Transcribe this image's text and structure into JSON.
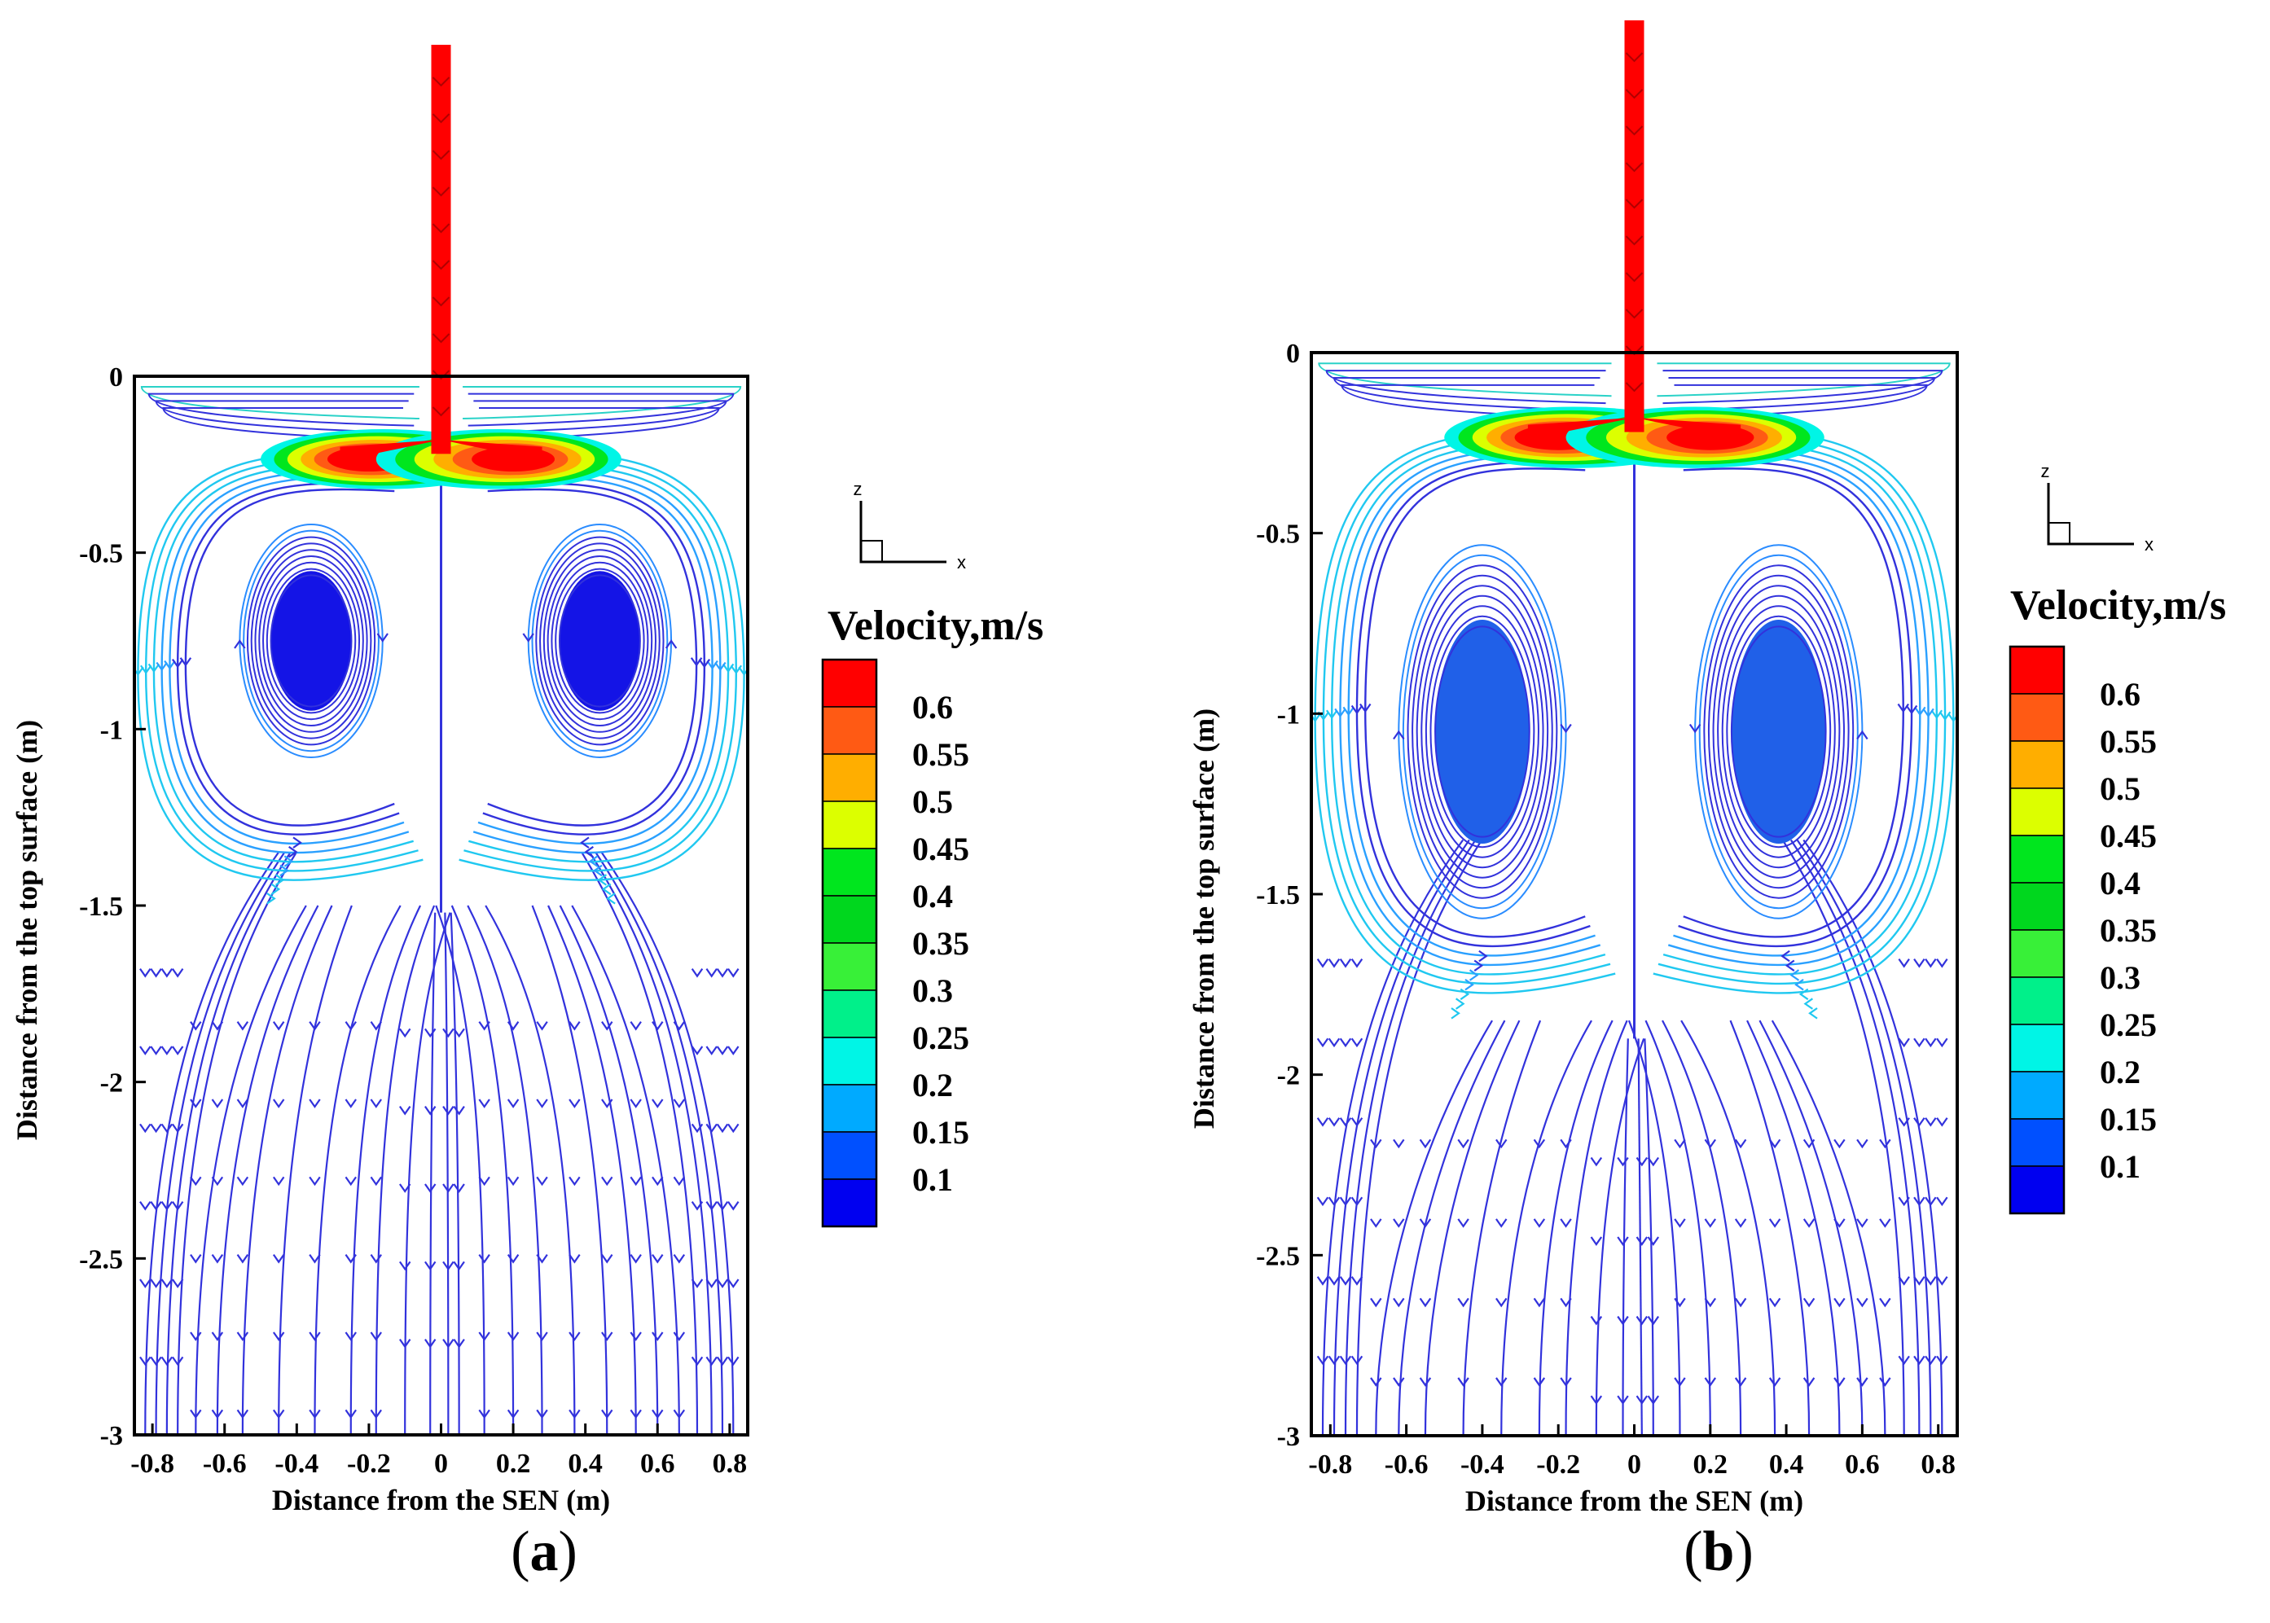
{
  "chart_data": [
    {
      "type": "streamline",
      "panel_label": "a",
      "xlabel": "Distance from the SEN (m)",
      "ylabel": "Distance from the top surface (m)",
      "xlim": [
        -0.85,
        0.85
      ],
      "ylim": [
        -3,
        0
      ],
      "xticks": [
        -0.8,
        -0.6,
        -0.4,
        -0.2,
        0,
        0.2,
        0.4,
        0.6,
        0.8
      ],
      "xtick_labels": [
        "-0.8",
        "-0.6",
        "-0.4",
        "-0.2",
        "0",
        "0.2",
        "0.4",
        "0.6",
        "0.8"
      ],
      "yticks": [
        0,
        -0.5,
        -1,
        -1.5,
        -2,
        -2.5,
        -3
      ],
      "ytick_labels": [
        "0",
        "-0.5",
        "-1",
        "-1.5",
        "-2",
        "-2.5",
        "-3"
      ],
      "colorbar": {
        "title": "Velocity,m/s",
        "levels": [
          "0.6",
          "0.55",
          "0.5",
          "0.45",
          "0.4",
          "0.35",
          "0.3",
          "0.25",
          "0.2",
          "0.15",
          "0.1"
        ]
      },
      "triad": {
        "z": "z",
        "x": "x"
      },
      "features": {
        "upper_roll_centers": [
          [
            -0.36,
            -0.8
          ],
          [
            0.44,
            -0.78
          ]
        ],
        "upper_roll_height": [
          -0.45,
          -1.05
        ],
        "center_merge_depth": -1.5,
        "jet_peak_velocity": 0.6
      }
    },
    {
      "type": "streamline",
      "panel_label": "b",
      "xlabel": "Distance from the SEN (m)",
      "ylabel": "Distance from the top surface (m)",
      "xlim": [
        -0.85,
        0.85
      ],
      "ylim": [
        -3,
        0
      ],
      "xticks": [
        -0.8,
        -0.6,
        -0.4,
        -0.2,
        0,
        0.2,
        0.4,
        0.6,
        0.8
      ],
      "xtick_labels": [
        "-0.8",
        "-0.6",
        "-0.4",
        "-0.2",
        "0",
        "0.2",
        "0.4",
        "0.6",
        "0.8"
      ],
      "yticks": [
        0,
        -0.5,
        -1,
        -1.5,
        -2,
        -2.5,
        -3
      ],
      "ytick_labels": [
        "0",
        "-0.5",
        "-1",
        "-1.5",
        "-2",
        "-2.5",
        "-3"
      ],
      "colorbar": {
        "title": "Velocity,m/s",
        "levels": [
          "0.6",
          "0.55",
          "0.5",
          "0.45",
          "0.4",
          "0.35",
          "0.3",
          "0.25",
          "0.2",
          "0.15",
          "0.1"
        ]
      },
      "triad": {
        "z": "z",
        "x": "x"
      },
      "features": {
        "upper_roll_centers": [
          [
            -0.4,
            -1.1
          ],
          [
            0.38,
            -1.1
          ]
        ],
        "upper_roll_height": [
          -0.6,
          -1.5
        ],
        "center_merge_depth": -1.9,
        "jet_peak_velocity": 0.6
      }
    }
  ],
  "colors": {
    "levels": [
      "#ff0000",
      "#ff5a14",
      "#ffae00",
      "#dcff00",
      "#00e61e",
      "#00d71e",
      "#38f038",
      "#00f08a",
      "#00f5e6",
      "#00aaff",
      "#0050ff",
      "#0000f0"
    ],
    "streamline": "#3232dc",
    "axis": "#000000"
  }
}
